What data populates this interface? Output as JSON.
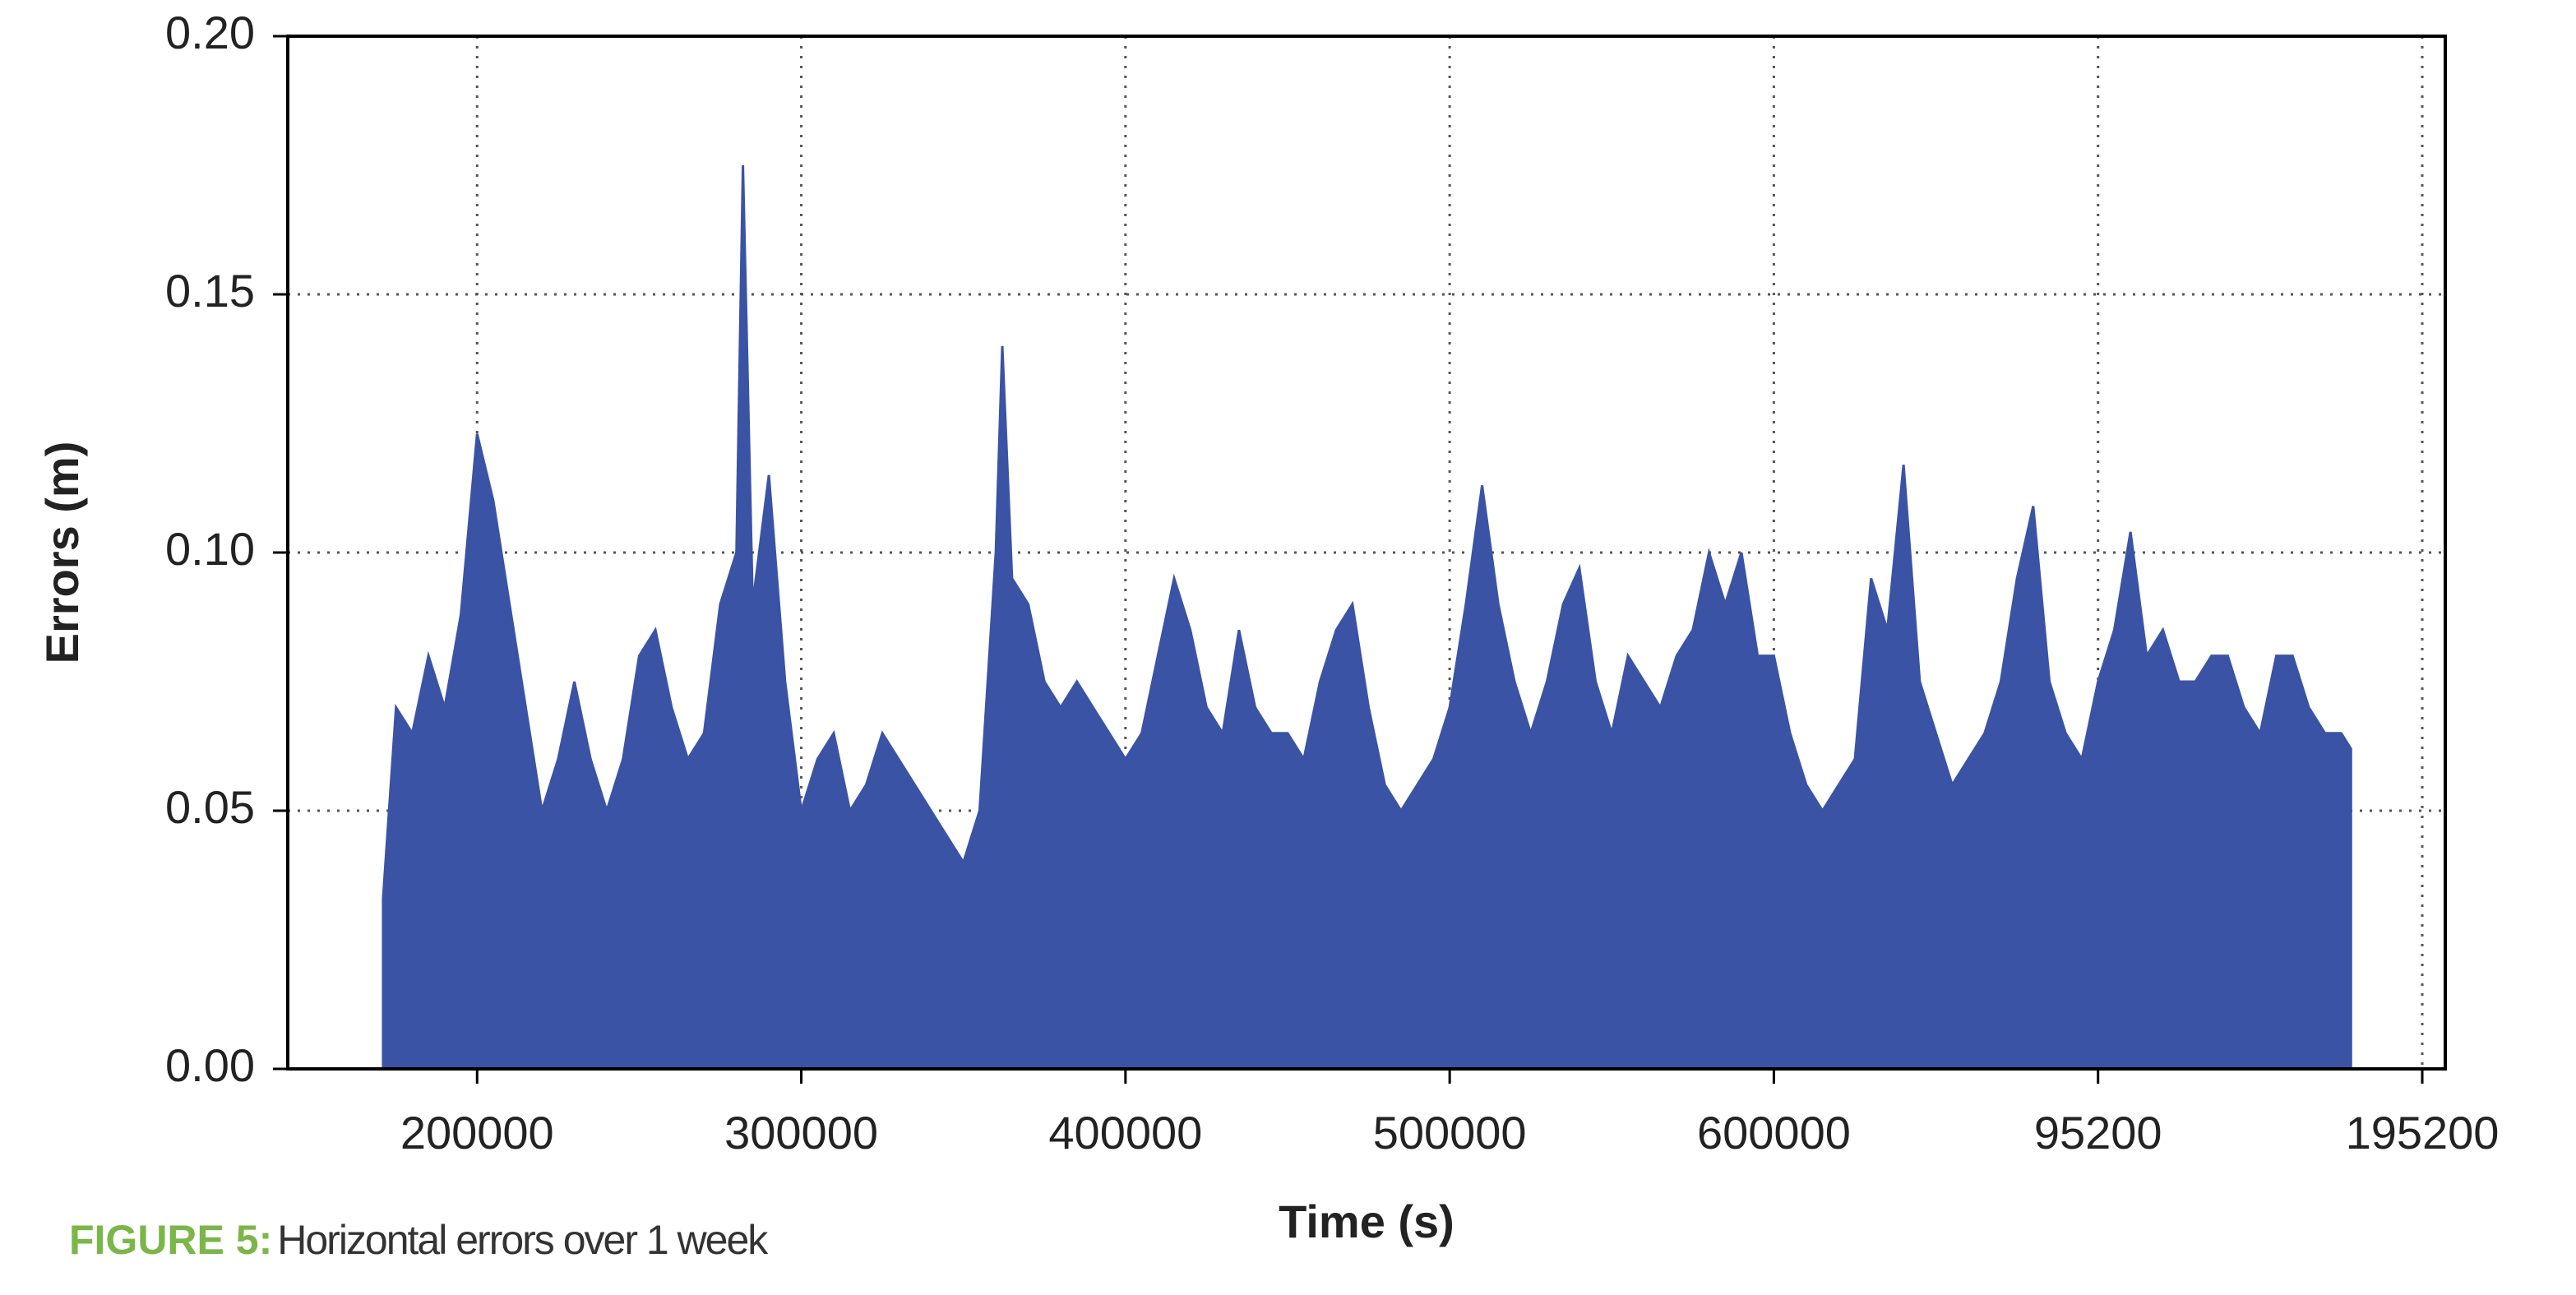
{
  "chart_data": {
    "type": "area",
    "xlabel": "Time (s)",
    "ylabel": "Errors (m)",
    "caption": {
      "label": "FIGURE 5:",
      "text": "Horizontal errors over 1 week"
    },
    "x": [
      171000,
      175000,
      180000,
      185000,
      190000,
      195000,
      200000,
      205000,
      210000,
      215000,
      220000,
      225000,
      230000,
      235000,
      240000,
      245000,
      250000,
      255000,
      260000,
      265000,
      270000,
      275000,
      280000,
      282000,
      285000,
      290000,
      295000,
      300000,
      305000,
      310000,
      315000,
      320000,
      325000,
      330000,
      335000,
      340000,
      345000,
      350000,
      355000,
      360000,
      362000,
      365000,
      370000,
      375000,
      380000,
      385000,
      390000,
      395000,
      400000,
      405000,
      410000,
      415000,
      420000,
      425000,
      430000,
      435000,
      440000,
      445000,
      450000,
      455000,
      460000,
      465000,
      470000,
      475000,
      480000,
      485000,
      490000,
      495000,
      500000,
      505000,
      510000,
      515000,
      520000,
      525000,
      530000,
      535000,
      540000,
      545000,
      550000,
      555000,
      560000,
      565000,
      570000,
      575000,
      580000,
      585000,
      590000,
      595000,
      600000,
      605000,
      610000,
      615000,
      620000,
      625000,
      630000,
      635000,
      640000,
      645000,
      650000,
      655000,
      660000,
      665000,
      670000,
      675000,
      680000,
      685000,
      690000,
      695000,
      700000,
      705000,
      710000,
      715000,
      720000,
      725000,
      730000,
      735000,
      740000,
      745000,
      750000,
      755000,
      760000,
      765000,
      770000,
      775000,
      778000
    ],
    "series": [
      {
        "name": "Horizontal error",
        "color": "#3a53a4",
        "values": [
          0.033,
          0.07,
          0.065,
          0.08,
          0.07,
          0.088,
          0.123,
          0.11,
          0.09,
          0.07,
          0.05,
          0.06,
          0.075,
          0.06,
          0.05,
          0.06,
          0.08,
          0.085,
          0.07,
          0.06,
          0.065,
          0.09,
          0.1,
          0.175,
          0.09,
          0.115,
          0.075,
          0.05,
          0.06,
          0.065,
          0.05,
          0.055,
          0.065,
          0.06,
          0.055,
          0.05,
          0.045,
          0.04,
          0.05,
          0.1,
          0.14,
          0.095,
          0.09,
          0.075,
          0.07,
          0.075,
          0.07,
          0.065,
          0.06,
          0.065,
          0.08,
          0.095,
          0.085,
          0.07,
          0.065,
          0.085,
          0.07,
          0.065,
          0.065,
          0.06,
          0.075,
          0.085,
          0.09,
          0.07,
          0.055,
          0.05,
          0.055,
          0.06,
          0.07,
          0.09,
          0.113,
          0.09,
          0.075,
          0.065,
          0.075,
          0.09,
          0.097,
          0.075,
          0.065,
          0.08,
          0.075,
          0.07,
          0.08,
          0.085,
          0.1,
          0.09,
          0.1,
          0.08,
          0.08,
          0.065,
          0.055,
          0.05,
          0.055,
          0.06,
          0.095,
          0.085,
          0.117,
          0.075,
          0.065,
          0.055,
          0.06,
          0.065,
          0.075,
          0.095,
          0.109,
          0.075,
          0.065,
          0.06,
          0.075,
          0.085,
          0.104,
          0.08,
          0.085,
          0.075,
          0.075,
          0.08,
          0.08,
          0.07,
          0.065,
          0.08,
          0.08,
          0.07,
          0.065,
          0.065,
          0.062
        ]
      }
    ],
    "xlim": [
      141600,
      807100
    ],
    "ylim": [
      0,
      0.2
    ],
    "xticks": [
      200000,
      300000,
      400000,
      500000,
      600000,
      {
        "value": 700000,
        "label": "95200"
      },
      {
        "value": 800000,
        "label": "195200"
      }
    ],
    "yticks": [
      {
        "value": 0,
        "label": "0.00"
      },
      {
        "value": 0.05,
        "label": "0.05"
      },
      {
        "value": 0.1,
        "label": "0.10"
      },
      {
        "value": 0.15,
        "label": "0.15"
      },
      {
        "value": 0.2,
        "label": "0.20"
      }
    ],
    "grid": true
  }
}
